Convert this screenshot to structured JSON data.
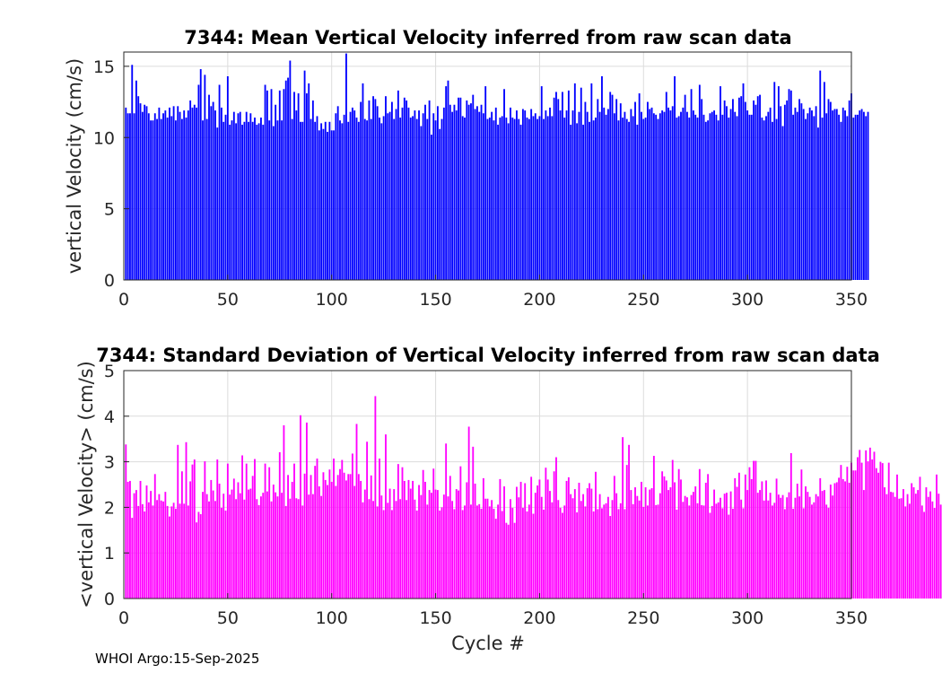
{
  "footer": "WHOI Argo:15-Sep-2025",
  "chart_data": [
    {
      "type": "bar",
      "title": "7344: Mean Vertical Velocity inferred from raw scan data",
      "xlabel": "",
      "ylabel": "vertical Velocity (cm/s)",
      "xlim": [
        0,
        350
      ],
      "ylim": [
        0,
        16
      ],
      "xticks": [
        0,
        50,
        100,
        150,
        200,
        250,
        300,
        350
      ],
      "yticks": [
        0,
        5,
        10,
        15
      ],
      "color": "#0000ff",
      "grid": true,
      "x_start": 1,
      "values": [
        12.1,
        11.7,
        11.7,
        15.1,
        11.7,
        14.0,
        12.9,
        12.4,
        11.8,
        12.3,
        12.2,
        11.7,
        11.2,
        11.2,
        11.7,
        11.3,
        12.1,
        11.3,
        11.7,
        11.9,
        11.4,
        12.1,
        11.5,
        12.2,
        11.2,
        12.2,
        11.8,
        11.3,
        11.9,
        11.4,
        11.9,
        12.6,
        12.1,
        12.3,
        12.1,
        13.7,
        14.8,
        11.2,
        14.4,
        11.3,
        13.0,
        12.2,
        12.5,
        11.9,
        10.7,
        13.7,
        12.1,
        11.1,
        11.6,
        14.3,
        10.9,
        11.2,
        11.8,
        11.0,
        11.7,
        11.8,
        10.9,
        11.1,
        11.8,
        11.1,
        11.7,
        11.1,
        11.4,
        10.9,
        11.0,
        11.4,
        10.9,
        13.7,
        13.3,
        11.2,
        13.4,
        10.8,
        12.3,
        11.2,
        13.3,
        11.2,
        13.4,
        14.0,
        14.2,
        15.4,
        11.3,
        13.2,
        11.9,
        13.1,
        11.1,
        11.1,
        14.7,
        13.1,
        13.8,
        11.3,
        12.6,
        11.1,
        11.5,
        10.5,
        11.0,
        10.6,
        11.1,
        10.4,
        11.1,
        10.5,
        10.5,
        11.7,
        12.2,
        11.2,
        11.0,
        11.6,
        15.9,
        11.1,
        11.8,
        12.1,
        11.9,
        11.4,
        11.1,
        12.5,
        13.8,
        11.3,
        11.2,
        12.6,
        11.3,
        12.9,
        12.7,
        12.2,
        11.4,
        11.0,
        11.5,
        12.9,
        11.7,
        11.8,
        12.5,
        11.3,
        12.0,
        13.3,
        11.4,
        12.1,
        12.8,
        12.6,
        12.1,
        11.4,
        11.5,
        11.9,
        11.3,
        11.9,
        10.8,
        11.7,
        12.3,
        11.3,
        12.6,
        10.2,
        11.7,
        11.2,
        12.2,
        10.6,
        11.3,
        12.1,
        13.6,
        14.0,
        12.3,
        11.8,
        12.3,
        11.9,
        12.8,
        12.8,
        11.5,
        11.4,
        12.6,
        12.3,
        12.4,
        13.0,
        12.0,
        12.2,
        11.8,
        12.3,
        11.7,
        13.6,
        11.3,
        11.4,
        11.8,
        11.2,
        12.1,
        10.9,
        11.4,
        11.5,
        13.4,
        11.4,
        11.0,
        12.1,
        11.4,
        11.3,
        11.9,
        11.3,
        10.9,
        12.0,
        11.9,
        11.4,
        11.3,
        12.0,
        11.5,
        11.7,
        11.3,
        11.5,
        13.6,
        11.3,
        11.9,
        11.5,
        12.1,
        11.5,
        12.8,
        13.2,
        12.7,
        11.9,
        13.2,
        11.4,
        11.9,
        13.3,
        10.9,
        11.9,
        13.8,
        11.0,
        11.8,
        13.5,
        10.9,
        12.5,
        11.8,
        11.1,
        13.8,
        11.2,
        11.4,
        12.7,
        11.8,
        14.3,
        12.1,
        11.6,
        12.0,
        13.2,
        13.0,
        11.7,
        12.7,
        11.2,
        12.4,
        11.4,
        11.8,
        11.3,
        11.1,
        12.0,
        11.5,
        12.5,
        10.9,
        13.1,
        11.8,
        11.3,
        11.4,
        12.5,
        12.0,
        12.1,
        11.7,
        11.6,
        11.3,
        11.7,
        11.9,
        11.8,
        13.2,
        12.1,
        11.9,
        12.2,
        14.3,
        11.4,
        11.5,
        11.8,
        12.1,
        13.0,
        11.8,
        11.4,
        13.4,
        11.9,
        11.6,
        11.4,
        13.7,
        12.7,
        11.6,
        11.1,
        11.2,
        11.7,
        11.8,
        11.9,
        11.6,
        11.2,
        13.6,
        11.6,
        12.6,
        12.2,
        11.4,
        12.0,
        12.7,
        11.8,
        11.5,
        12.8,
        12.9,
        13.8,
        12.5,
        11.9,
        11.6,
        11.6,
        12.6,
        12.3,
        12.9,
        13.0,
        11.4,
        11.2,
        11.5,
        11.8,
        12.1,
        11.1,
        13.9,
        11.3,
        13.6,
        12.2,
        10.8,
        12.3,
        12.6,
        13.4,
        13.3,
        11.6,
        12.1,
        11.8,
        12.7,
        12.4,
        12.0,
        11.3,
        11.7,
        12.1,
        11.9,
        11.5,
        12.2,
        10.7,
        14.7,
        11.4,
        13.9,
        11.7,
        12.7,
        12.5,
        11.9,
        12.0,
        12.0,
        11.6,
        11.1,
        12.1,
        11.9,
        11.5,
        12.6,
        13.1,
        11.4,
        11.6,
        11.6,
        11.9,
        12.0,
        11.8,
        11.5,
        11.8
      ]
    },
    {
      "type": "bar",
      "title": "7344: Standard Deviation of Vertical Velocity inferred from raw scan data",
      "xlabel": "Cycle #",
      "ylabel": "<vertical Velocity> (cm/s)",
      "xlim": [
        0,
        350
      ],
      "ylim": [
        0,
        5
      ],
      "xticks": [
        0,
        50,
        100,
        150,
        200,
        250,
        300,
        350
      ],
      "yticks": [
        0,
        1,
        2,
        3,
        4,
        5
      ],
      "color": "#ff00ff",
      "grid": true,
      "x_start": 1,
      "values": [
        3.38,
        2.56,
        2.58,
        1.77,
        2.31,
        2.38,
        2.03,
        2.58,
        2.07,
        1.91,
        2.48,
        2.11,
        2.36,
        2.04,
        2.73,
        2.16,
        2.29,
        2.15,
        2.13,
        2.34,
        2.03,
        1.8,
        2.02,
        2.1,
        1.97,
        3.37,
        2.08,
        2.79,
        2.08,
        3.43,
        2.04,
        2.57,
        2.94,
        3.05,
        1.67,
        1.9,
        1.85,
        2.34,
        3.01,
        2.29,
        2.13,
        2.6,
        2.37,
        2.14,
        3.05,
        2.52,
        1.99,
        2.3,
        1.93,
        2.96,
        2.28,
        2.39,
        2.63,
        2.18,
        2.55,
        2.31,
        3.14,
        2.17,
        2.96,
        2.39,
        2.41,
        2.69,
        3.06,
        2.18,
        2.05,
        2.24,
        2.32,
        2.96,
        2.35,
        2.88,
        2.13,
        2.5,
        2.33,
        2.24,
        3.21,
        2.32,
        3.8,
        2.03,
        2.71,
        2.19,
        2.56,
        2.96,
        2.2,
        2.18,
        4.02,
        2.04,
        2.74,
        3.86,
        2.28,
        2.71,
        2.29,
        2.91,
        3.07,
        2.46,
        2.25,
        2.77,
        2.6,
        2.49,
        2.83,
        2.56,
        3.07,
        2.47,
        2.71,
        2.84,
        3.04,
        2.76,
        2.59,
        2.73,
        2.73,
        3.18,
        2.47,
        3.83,
        2.73,
        2.58,
        2.11,
        2.39,
        3.44,
        2.18,
        2.7,
        2.14,
        4.44,
        2.02,
        3.07,
        2.26,
        1.94,
        3.6,
        2.1,
        2.41,
        1.94,
        2.4,
        2.14,
        2.95,
        2.18,
        2.88,
        2.58,
        2.16,
        2.6,
        2.41,
        2.58,
        2.17,
        1.93,
        2.49,
        2.27,
        2.82,
        2.56,
        2.06,
        2.38,
        2.32,
        2.85,
        2.39,
        2.38,
        1.93,
        2.0,
        2.28,
        3.4,
        2.24,
        2.69,
        2.14,
        1.96,
        2.4,
        2.37,
        2.9,
        1.94,
        2.04,
        2.55,
        3.77,
        2.06,
        3.33,
        2.52,
        2.04,
        2.07,
        1.97,
        2.64,
        2.19,
        2.19,
        2.02,
        2.16,
        1.97,
        1.75,
        2.06,
        2.62,
        1.92,
        2.46,
        1.66,
        1.62,
        2.18,
        1.99,
        1.66,
        2.45,
        2.22,
        2.56,
        1.99,
        2.53,
        1.91,
        2.06,
        2.67,
        1.86,
        2.32,
        2.48,
        2.61,
        2.23,
        1.95,
        2.87,
        2.61,
        2.36,
        2.11,
        2.79,
        3.1,
        2.16,
        1.99,
        1.88,
        2.04,
        2.58,
        2.66,
        2.29,
        2.2,
        2.4,
        1.89,
        2.54,
        2.14,
        2.29,
        2.02,
        2.42,
        2.53,
        2.41,
        1.91,
        2.78,
        1.96,
        2.29,
        1.98,
        2.06,
        2.09,
        2.23,
        1.81,
        2.16,
        2.69,
        2.31,
        1.96,
        2.09,
        3.54,
        1.96,
        2.93,
        3.37,
        2.38,
        2.07,
        2.44,
        2.25,
        2.15,
        2.56,
        2.01,
        2.44,
        2.04,
        2.39,
        2.42,
        3.13,
        2.05,
        2.06,
        2.31,
        2.79,
        2.68,
        2.59,
        2.38,
        2.44,
        3.04,
        2.55,
        1.95,
        2.84,
        2.61,
        2.12,
        2.25,
        2.22,
        2.04,
        2.27,
        2.34,
        2.46,
        2.09,
        2.84,
        2.05,
        2.04,
        2.54,
        2.73,
        1.88,
        2.03,
        2.39,
        2.08,
        2.11,
        2.21,
        1.98,
        2.3,
        2.32,
        1.84,
        2.35,
        1.97,
        2.64,
        2.45,
        2.76,
        2.17,
        1.98,
        2.72,
        2.38,
        2.88,
        2.62,
        3.02,
        3.02,
        2.32,
        2.38,
        2.57,
        2.15,
        2.59,
        2.15,
        2.32,
        2.04,
        2.1,
        2.63,
        2.28,
        2.21,
        2.27,
        1.96,
        2.22,
        2.33,
        3.19,
        1.97,
        2.21,
        2.52,
        2.24,
        2.83,
        1.98,
        2.46,
        2.34,
        2.23,
        2.06,
        2.11,
        2.29,
        2.24,
        2.64,
        2.36,
        2.38,
        2.06,
        1.99,
        2.5,
        2.26,
        2.53,
        2.55,
        2.65,
        2.93,
        2.62,
        2.57,
        2.89,
        2.54,
        2.98,
        2.81,
        2.81,
        3.1,
        3.26,
        2.98,
        2.38,
        3.25,
        3.01,
        3.31,
        3.05,
        3.22,
        2.86,
        2.76,
        3.0,
        2.97,
        2.44,
        2.29,
        2.98,
        2.34,
        2.33,
        2.23,
        2.72,
        2.19,
        2.2,
        2.4,
        2.02,
        2.29,
        2.08,
        2.53,
        2.44,
        2.3,
        2.38,
        2.67,
        2.04,
        1.9,
        2.44,
        2.23,
        2.35,
        2.13,
        1.99,
        2.72,
        2.3,
        2.06,
        2.42
      ]
    }
  ]
}
